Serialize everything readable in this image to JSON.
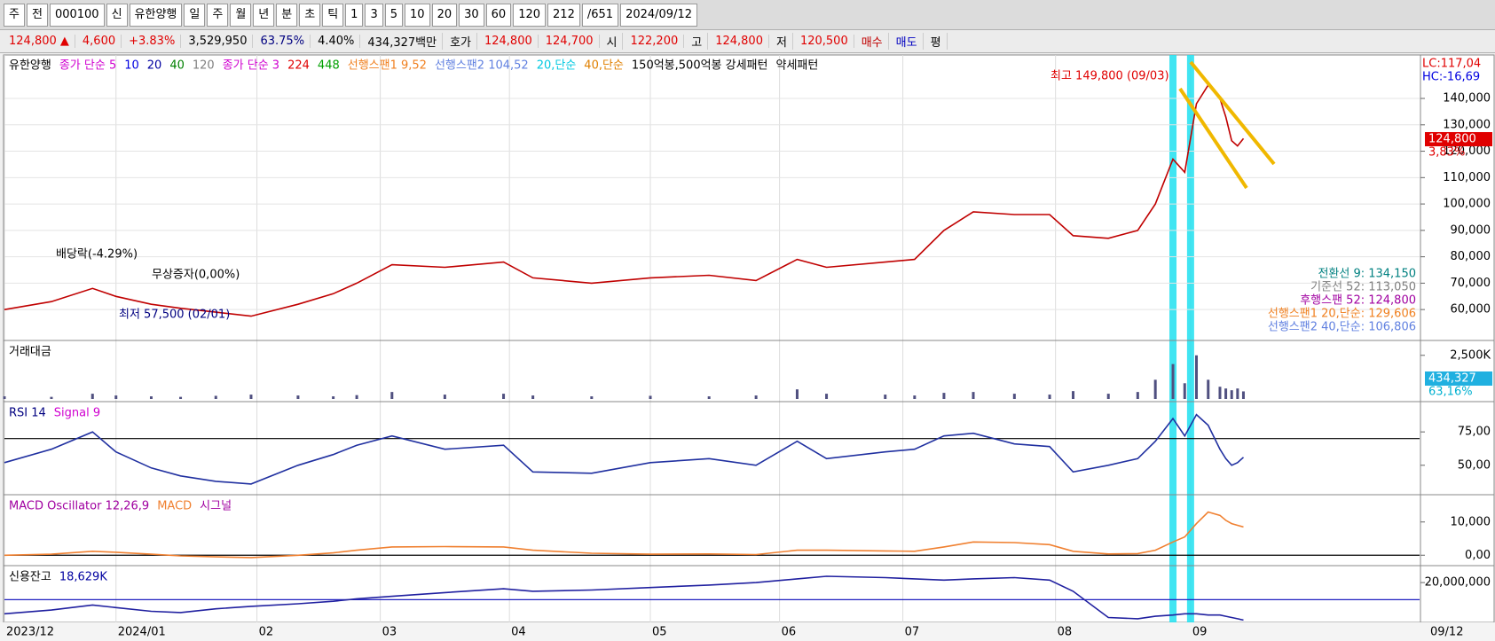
{
  "toolbar": {
    "items": [
      "주",
      "전",
      "000100",
      "신",
      "유한양행",
      "일",
      "주",
      "월",
      "년",
      "분",
      "초",
      "틱",
      "1",
      "3",
      "5",
      "10",
      "20",
      "30",
      "60",
      "120",
      "212",
      "/651",
      "2024/09/12"
    ]
  },
  "quote": [
    {
      "text": "124,800 ▲",
      "color": "#e00000"
    },
    {
      "text": "4,600",
      "color": "#e00000"
    },
    {
      "text": "+3.83%",
      "color": "#e00000"
    },
    {
      "text": "3,529,950",
      "color": "#000000"
    },
    {
      "text": "63.75%",
      "color": "#000080"
    },
    {
      "text": "4.40%",
      "color": "#000000"
    },
    {
      "text": "434,327백만",
      "color": "#000000"
    },
    {
      "text": "호가",
      "color": "#000000"
    },
    {
      "text": "124,800",
      "color": "#e00000"
    },
    {
      "text": "124,700",
      "color": "#e00000"
    },
    {
      "text": "시",
      "color": "#000000"
    },
    {
      "text": "122,200",
      "color": "#e00000"
    },
    {
      "text": "고",
      "color": "#000000"
    },
    {
      "text": "124,800",
      "color": "#e00000"
    },
    {
      "text": "저",
      "color": "#000000"
    },
    {
      "text": "120,500",
      "color": "#e00000"
    },
    {
      "text": "매수",
      "color": "#c00000"
    },
    {
      "text": "매도",
      "color": "#0000c0"
    },
    {
      "text": "평",
      "color": "#000000"
    }
  ],
  "x_axis": {
    "xlim": [
      0,
      241
    ],
    "xticks": [
      {
        "value": 0,
        "label": "2023/12"
      },
      {
        "value": 19,
        "label": "2024/01"
      },
      {
        "value": 43,
        "label": "02"
      },
      {
        "value": 64,
        "label": "03"
      },
      {
        "value": 86,
        "label": "04"
      },
      {
        "value": 110,
        "label": "05"
      },
      {
        "value": 132,
        "label": "06"
      },
      {
        "value": 153,
        "label": "07"
      },
      {
        "value": 179,
        "label": "08"
      },
      {
        "value": 202,
        "label": "09"
      }
    ],
    "end_label": "09/12",
    "highlight_x": [
      199,
      202
    ],
    "x": [
      0,
      8,
      15,
      19,
      25,
      30,
      36,
      42,
      50,
      56,
      60,
      66,
      75,
      85,
      90,
      100,
      110,
      120,
      128,
      135,
      140,
      150,
      155,
      160,
      165,
      172,
      178,
      182,
      188,
      193,
      196,
      199,
      201,
      203,
      205,
      207,
      208,
      209,
      210,
      211
    ]
  },
  "chart_data": [
    {
      "type": "line",
      "color": "#c00000",
      "grid": true,
      "legend": [
        {
          "text": "유한양행",
          "color": "#000000"
        },
        {
          "text": "종가 단순 5",
          "color": "#d000d0"
        },
        {
          "text": "10",
          "color": "#0000e0"
        },
        {
          "text": "20",
          "color": "#0000a0"
        },
        {
          "text": "40",
          "color": "#008000"
        },
        {
          "text": "120",
          "color": "#808080"
        },
        {
          "text": "종가 단순 3",
          "color": "#d000d0"
        },
        {
          "text": "224",
          "color": "#e00000"
        },
        {
          "text": "448",
          "color": "#00a000"
        },
        {
          "text": "선행스팬1 9,52",
          "color": "#f08020"
        },
        {
          "text": "선행스팬2 104,52",
          "color": "#6080e0"
        },
        {
          "text": "20,단순",
          "color": "#00c8e0"
        },
        {
          "text": "40,단순",
          "color": "#e08000"
        },
        {
          "text": "150억봉,500억봉 강세패턴",
          "color": "#000000"
        },
        {
          "text": "약세패턴",
          "color": "#000000"
        }
      ],
      "annotations": [
        {
          "text": "최고 149,800 (09/03)",
          "color": "#e00000"
        },
        {
          "text": "배당락(-4.29%)",
          "color": "#000000"
        },
        {
          "text": "무상증자(0,00%)",
          "color": "#000000"
        },
        {
          "text": "최저 57,500 (02/01)",
          "color": "#000080"
        }
      ],
      "right_labels": [
        {
          "text": "LC:117,04",
          "color": "#e00000"
        },
        {
          "text": "HC:-16,69",
          "color": "#0000e0"
        },
        {
          "text": "124,800",
          "color": "#ffffff"
        },
        {
          "text": "3,83%",
          "color": "#e00000"
        },
        {
          "text": "전환선 9: 134,150",
          "color": "#008080"
        },
        {
          "text": "기준선 52: 113,050",
          "color": "#808080"
        },
        {
          "text": "후행스팬 52: 124,800",
          "color": "#a000a0"
        },
        {
          "text": "선행스팬1 20,단순: 129,606",
          "color": "#f08020"
        },
        {
          "text": "선행스팬2 40,단순: 106,806",
          "color": "#6080e0"
        }
      ],
      "ylim": [
        49300,
        155800
      ],
      "yticks": [
        {
          "value": 60000,
          "label": "60,000"
        },
        {
          "value": 70000,
          "label": "70,000"
        },
        {
          "value": 80000,
          "label": "80,000"
        },
        {
          "value": 90000,
          "label": "90,000"
        },
        {
          "value": 100000,
          "label": "100,000"
        },
        {
          "value": 110000,
          "label": "110,000"
        },
        {
          "value": 120000,
          "label": "120,000"
        },
        {
          "value": 130000,
          "label": "130,000"
        },
        {
          "value": 140000,
          "label": "140,000"
        }
      ],
      "values": [
        60000,
        63000,
        68000,
        65000,
        62000,
        60500,
        59000,
        57500,
        62000,
        66000,
        70000,
        77000,
        76000,
        78000,
        72000,
        70000,
        72000,
        73000,
        71000,
        79000,
        76000,
        78000,
        79000,
        90000,
        97000,
        96000,
        96000,
        88000,
        87000,
        90000,
        100000,
        117000,
        112000,
        138000,
        145000,
        140000,
        133000,
        124000,
        122000,
        124800
      ]
    },
    {
      "type": "bar",
      "color": "#505080",
      "grid": false,
      "legend": [
        {
          "text": "거래대금",
          "color": "#000000"
        }
      ],
      "right_labels": [
        {
          "text": "434,327",
          "color": "#ffffff"
        },
        {
          "text": "63,16%",
          "color": "#00b0d0"
        }
      ],
      "ylim": [
        0,
        3200
      ],
      "yticks": [
        {
          "value": 2500,
          "label": "2,500K"
        }
      ],
      "values": [
        150,
        120,
        300,
        200,
        150,
        120,
        180,
        250,
        200,
        150,
        220,
        400,
        250,
        300,
        200,
        150,
        180,
        150,
        200,
        550,
        300,
        250,
        200,
        350,
        400,
        300,
        250,
        450,
        300,
        400,
        1100,
        2000,
        900,
        2500,
        1100,
        700,
        600,
        500,
        600,
        434
      ]
    },
    {
      "type": "line",
      "color": "#2030a0",
      "grid": false,
      "hline": 70,
      "legend": [
        {
          "text": "RSI 14",
          "color": "#000080"
        },
        {
          "text": "Signal 9",
          "color": "#d000d0"
        }
      ],
      "ylim": [
        28.6,
        95.7
      ],
      "yticks": [
        {
          "value": 75,
          "label": "75,00"
        },
        {
          "value": 50,
          "label": "50,00"
        }
      ],
      "values": [
        52,
        62,
        75,
        60,
        48,
        42,
        38,
        36,
        50,
        58,
        65,
        72,
        62,
        65,
        45,
        44,
        52,
        55,
        50,
        68,
        55,
        60,
        62,
        72,
        74,
        66,
        64,
        45,
        50,
        55,
        68,
        85,
        72,
        88,
        80,
        62,
        55,
        50,
        52,
        56
      ]
    },
    {
      "type": "line",
      "color": "#f08030",
      "grid": false,
      "hline": 0,
      "legend": [
        {
          "text": "MACD Oscillator 12,26,9",
          "color": "#a000a0"
        },
        {
          "text": "MACD",
          "color": "#f08030"
        },
        {
          "text": "시그널",
          "color": "#a000a0"
        }
      ],
      "ylim": [
        -3400,
        17400
      ],
      "yticks": [
        {
          "value": 10000,
          "label": "10,000"
        },
        {
          "value": 0,
          "label": "0,00"
        }
      ],
      "values": [
        0,
        300,
        1200,
        900,
        300,
        -200,
        -500,
        -700,
        0,
        700,
        1500,
        2500,
        2600,
        2500,
        1500,
        600,
        300,
        400,
        200,
        1500,
        1500,
        1300,
        1200,
        2500,
        4000,
        3800,
        3200,
        1200,
        400,
        500,
        1500,
        4000,
        5500,
        9500,
        13000,
        12000,
        10500,
        9500,
        9000,
        8500
      ]
    },
    {
      "type": "line",
      "color": "#2020a0",
      "grid": false,
      "hline": 18629000,
      "legend": [
        {
          "text": "신용잔고",
          "color": "#000000"
        },
        {
          "text": "18,629K",
          "color": "#0000a0"
        }
      ],
      "ylim": [
        16954000,
        21142000
      ],
      "yticks": [
        {
          "value": 20000000,
          "label": "20,000,000"
        }
      ],
      "values": [
        17500000,
        17800000,
        18200000,
        18000000,
        17700000,
        17600000,
        17900000,
        18100000,
        18300000,
        18500000,
        18700000,
        18900000,
        19200000,
        19500000,
        19300000,
        19400000,
        19600000,
        19800000,
        20000000,
        20300000,
        20500000,
        20400000,
        20300000,
        20200000,
        20300000,
        20400000,
        20200000,
        19300000,
        17200000,
        17100000,
        17300000,
        17400000,
        17500000,
        17500000,
        17400000,
        17400000,
        17300000,
        17200000,
        17100000,
        17000000
      ]
    }
  ]
}
